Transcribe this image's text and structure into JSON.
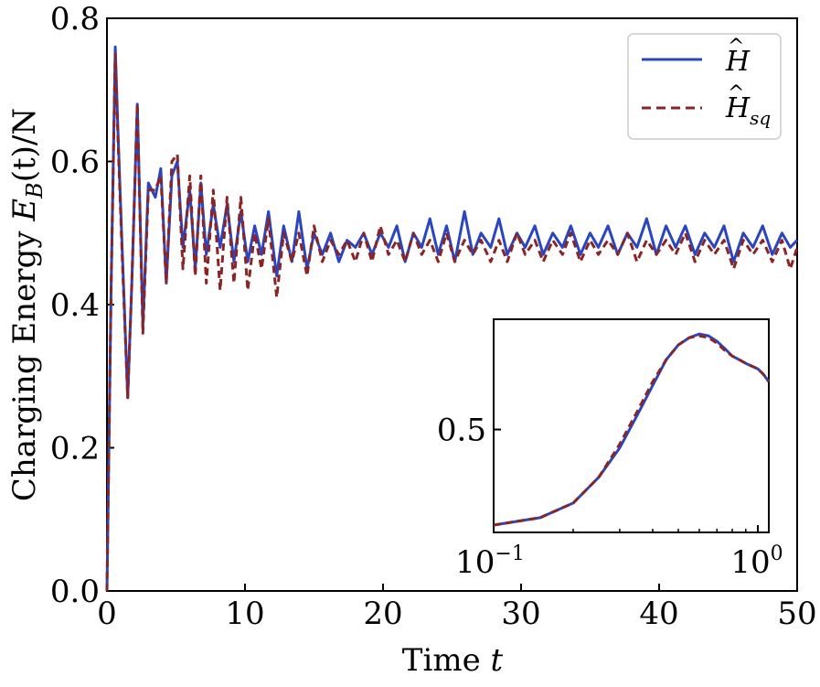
{
  "chart_data": [
    {
      "type": "line",
      "role": "main",
      "xlabel": "Time t",
      "ylabel": "Charging Energy E_B(t)/N",
      "xlim": [
        0,
        50
      ],
      "ylim": [
        0.0,
        0.8
      ],
      "xticks": [
        0,
        10,
        20,
        30,
        40,
        50
      ],
      "xtick_labels": [
        "0",
        "10",
        "20",
        "30",
        "40",
        "50"
      ],
      "yticks": [
        0.0,
        0.2,
        0.4,
        0.6,
        0.8
      ],
      "ytick_labels": [
        "0.0",
        "0.2",
        "0.4",
        "0.6",
        "0.8"
      ],
      "grid": false,
      "legend_position": "top-right",
      "series": [
        {
          "name": "Ĥ",
          "color": "#2a45c0",
          "style": "solid",
          "x": [
            0,
            0.3,
            0.6,
            0.8,
            1.1,
            1.5,
            1.8,
            2.2,
            2.6,
            3.0,
            3.5,
            3.9,
            4.3,
            4.7,
            5.1,
            5.5,
            6.0,
            6.4,
            6.8,
            7.2,
            7.7,
            8.2,
            8.7,
            9.2,
            9.7,
            10.2,
            10.7,
            11.2,
            11.7,
            12.3,
            12.8,
            13.4,
            13.9,
            14.5,
            15.0,
            15.6,
            16.2,
            16.8,
            17.4,
            18.0,
            18.6,
            19.2,
            19.8,
            20.4,
            21.0,
            21.6,
            22.2,
            22.8,
            23.4,
            24.0,
            24.6,
            25.2,
            25.9,
            26.5,
            27.1,
            27.8,
            28.4,
            29.0,
            29.7,
            30.3,
            31.0,
            31.6,
            32.3,
            33.0,
            33.6,
            34.3,
            35.0,
            35.6,
            36.3,
            37.0,
            37.7,
            38.4,
            39.1,
            39.8,
            40.5,
            41.2,
            41.9,
            42.6,
            43.3,
            44.0,
            44.7,
            45.4,
            46.1,
            46.8,
            47.5,
            48.2,
            48.9,
            49.5,
            50.0
          ],
          "values": [
            0.0,
            0.42,
            0.76,
            0.64,
            0.48,
            0.27,
            0.43,
            0.68,
            0.37,
            0.57,
            0.55,
            0.59,
            0.43,
            0.58,
            0.6,
            0.48,
            0.56,
            0.45,
            0.57,
            0.47,
            0.54,
            0.48,
            0.54,
            0.46,
            0.53,
            0.46,
            0.51,
            0.47,
            0.53,
            0.44,
            0.51,
            0.46,
            0.53,
            0.45,
            0.5,
            0.47,
            0.5,
            0.46,
            0.49,
            0.48,
            0.5,
            0.47,
            0.5,
            0.48,
            0.51,
            0.46,
            0.5,
            0.48,
            0.52,
            0.47,
            0.51,
            0.46,
            0.53,
            0.47,
            0.5,
            0.48,
            0.52,
            0.47,
            0.5,
            0.48,
            0.51,
            0.47,
            0.5,
            0.48,
            0.51,
            0.47,
            0.5,
            0.48,
            0.51,
            0.47,
            0.5,
            0.48,
            0.52,
            0.47,
            0.51,
            0.48,
            0.51,
            0.47,
            0.5,
            0.48,
            0.51,
            0.46,
            0.5,
            0.48,
            0.51,
            0.47,
            0.5,
            0.48,
            0.49
          ]
        },
        {
          "name": "Ĥ_sq",
          "color": "#8b2525",
          "style": "dashed",
          "x": [
            0,
            0.3,
            0.6,
            0.8,
            1.1,
            1.5,
            1.8,
            2.2,
            2.6,
            3.0,
            3.5,
            3.9,
            4.3,
            4.7,
            5.1,
            5.5,
            6.0,
            6.4,
            6.8,
            7.2,
            7.7,
            8.2,
            8.7,
            9.2,
            9.7,
            10.2,
            10.7,
            11.2,
            11.7,
            12.3,
            12.8,
            13.4,
            13.9,
            14.5,
            15.0,
            15.6,
            16.2,
            16.8,
            17.4,
            18.0,
            18.6,
            19.2,
            19.8,
            20.4,
            21.0,
            21.6,
            22.2,
            22.8,
            23.4,
            24.0,
            24.6,
            25.2,
            25.9,
            26.5,
            27.1,
            27.8,
            28.4,
            29.0,
            29.7,
            30.3,
            31.0,
            31.6,
            32.3,
            33.0,
            33.6,
            34.3,
            35.0,
            35.6,
            36.3,
            37.0,
            37.7,
            38.4,
            39.1,
            39.8,
            40.5,
            41.2,
            41.9,
            42.6,
            43.3,
            44.0,
            44.7,
            45.4,
            46.1,
            46.8,
            47.5,
            48.2,
            48.9,
            49.5,
            50.0
          ],
          "values": [
            0.0,
            0.42,
            0.75,
            0.63,
            0.47,
            0.27,
            0.43,
            0.68,
            0.36,
            0.56,
            0.56,
            0.58,
            0.43,
            0.6,
            0.61,
            0.45,
            0.58,
            0.44,
            0.58,
            0.43,
            0.56,
            0.42,
            0.55,
            0.43,
            0.55,
            0.42,
            0.5,
            0.45,
            0.52,
            0.41,
            0.5,
            0.46,
            0.5,
            0.44,
            0.51,
            0.46,
            0.49,
            0.47,
            0.49,
            0.46,
            0.5,
            0.46,
            0.51,
            0.47,
            0.49,
            0.46,
            0.5,
            0.47,
            0.49,
            0.46,
            0.5,
            0.46,
            0.49,
            0.47,
            0.49,
            0.46,
            0.49,
            0.46,
            0.5,
            0.47,
            0.49,
            0.46,
            0.49,
            0.47,
            0.5,
            0.46,
            0.49,
            0.47,
            0.49,
            0.47,
            0.5,
            0.46,
            0.49,
            0.47,
            0.49,
            0.47,
            0.5,
            0.46,
            0.49,
            0.47,
            0.49,
            0.45,
            0.49,
            0.47,
            0.49,
            0.46,
            0.49,
            0.45,
            0.48
          ]
        }
      ]
    },
    {
      "type": "line",
      "role": "inset",
      "xscale": "log",
      "xlim": [
        0.1,
        1.1
      ],
      "ylim": [
        0.22,
        0.8
      ],
      "xticks": [
        0.1,
        1.0
      ],
      "xtick_labels": [
        "10^-1",
        "10^0"
      ],
      "yticks": [
        0.5
      ],
      "ytick_labels": [
        "0.5"
      ],
      "legend_position": "none",
      "series": [
        {
          "name": "Ĥ",
          "color": "#2a45c0",
          "style": "solid",
          "x": [
            0.1,
            0.15,
            0.2,
            0.25,
            0.3,
            0.35,
            0.4,
            0.45,
            0.5,
            0.55,
            0.6,
            0.65,
            0.7,
            0.75,
            0.8,
            0.85,
            0.9,
            1.0,
            1.05,
            1.1
          ],
          "values": [
            0.24,
            0.26,
            0.3,
            0.37,
            0.45,
            0.54,
            0.62,
            0.69,
            0.73,
            0.75,
            0.76,
            0.755,
            0.74,
            0.72,
            0.7,
            0.69,
            0.68,
            0.665,
            0.65,
            0.63
          ]
        },
        {
          "name": "Ĥ_sq",
          "color": "#8b2525",
          "style": "dashed",
          "x": [
            0.1,
            0.15,
            0.2,
            0.25,
            0.3,
            0.35,
            0.4,
            0.45,
            0.5,
            0.55,
            0.6,
            0.65,
            0.7,
            0.75,
            0.8,
            0.85,
            0.9,
            1.0,
            1.05,
            1.1
          ],
          "values": [
            0.24,
            0.26,
            0.3,
            0.37,
            0.46,
            0.55,
            0.63,
            0.69,
            0.73,
            0.75,
            0.755,
            0.75,
            0.735,
            0.715,
            0.7,
            0.69,
            0.68,
            0.665,
            0.65,
            0.63
          ]
        }
      ]
    }
  ],
  "legend": {
    "entries": [
      {
        "label_base": "H",
        "label_sub": "",
        "color": "#2a45c0",
        "style": "solid"
      },
      {
        "label_base": "H",
        "label_sub": "sq",
        "color": "#8b2525",
        "style": "dashed"
      }
    ]
  },
  "labels": {
    "xlabel_text": "Time ",
    "xlabel_var": "t",
    "ylabel_prefix": "Charging Energy ",
    "ylabel_E": "E",
    "ylabel_sub": "B",
    "ylabel_suffix": "(t)/N",
    "inset_x_low_base": "10",
    "inset_x_low_exp": "−1",
    "inset_x_high_base": "10",
    "inset_x_high_exp": "0"
  }
}
